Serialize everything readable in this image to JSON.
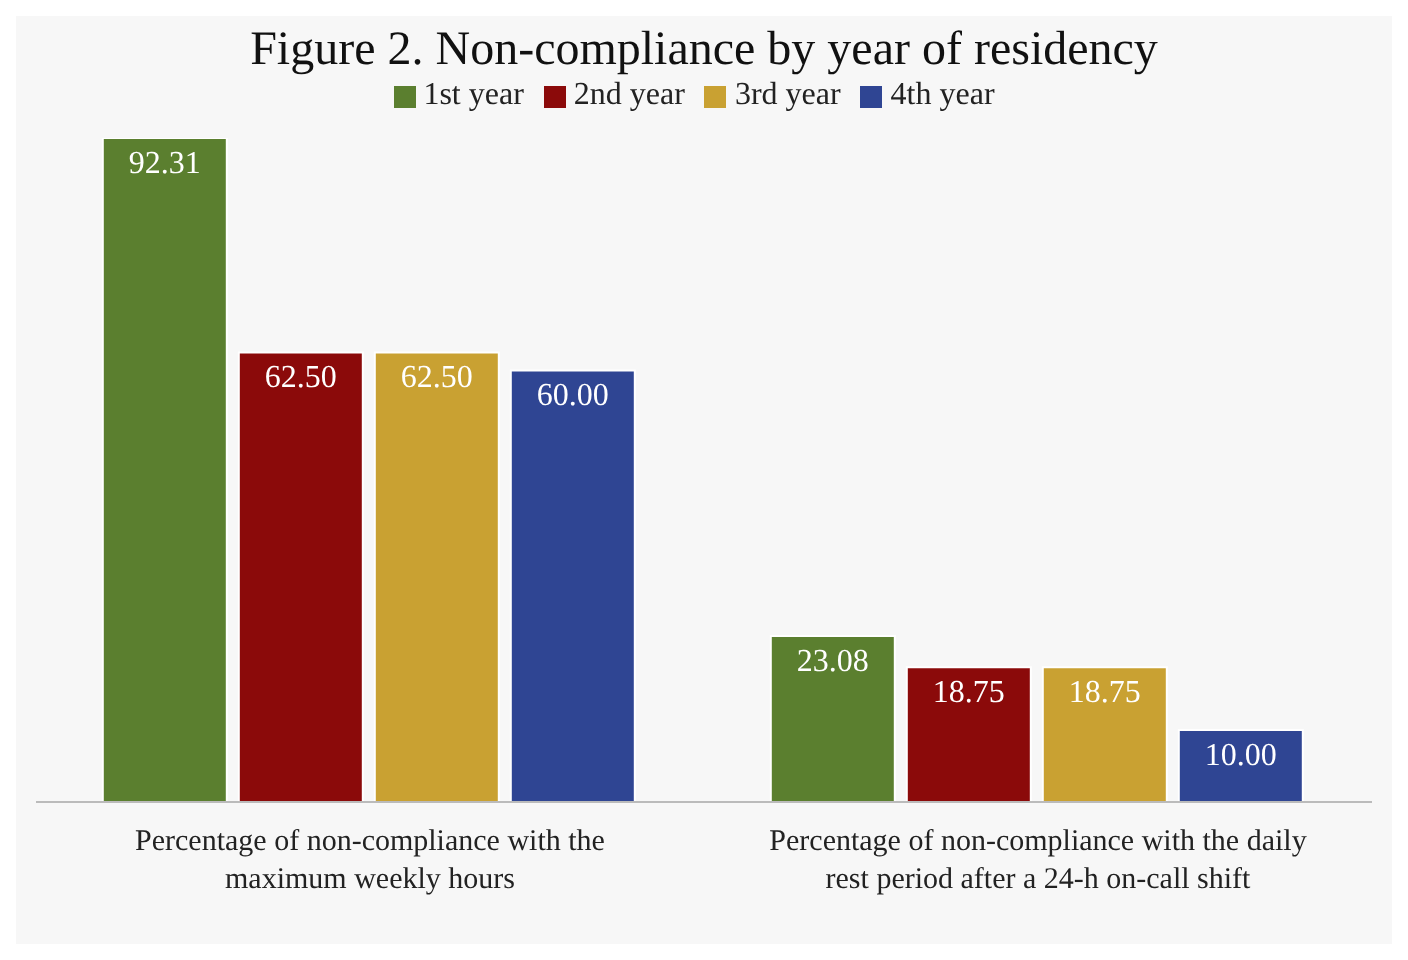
{
  "chart_data": {
    "type": "bar",
    "title": "Figure 2. Non-compliance by year of residency",
    "categories": [
      "Percentage of non-compliance with the maximum weekly hours",
      "Percentage of non-compliance with the daily rest period after a 24-h on-call shift"
    ],
    "series": [
      {
        "name": "1st year",
        "color": "#5b7f2f",
        "values": [
          92.31,
          23.08
        ],
        "value_labels": [
          "92.31",
          "23.08"
        ]
      },
      {
        "name": "2nd year",
        "color": "#8b0a0a",
        "values": [
          62.5,
          18.75
        ],
        "value_labels": [
          "62.50",
          "18.75"
        ]
      },
      {
        "name": "3rd year",
        "color": "#c9a132",
        "values": [
          62.5,
          18.75
        ],
        "value_labels": [
          "62.50",
          "18.75"
        ]
      },
      {
        "name": "4th year",
        "color": "#2f4593",
        "values": [
          60.0,
          10.0
        ],
        "value_labels": [
          "60.00",
          "10.00"
        ]
      }
    ],
    "legend": "top",
    "grid": false
  }
}
